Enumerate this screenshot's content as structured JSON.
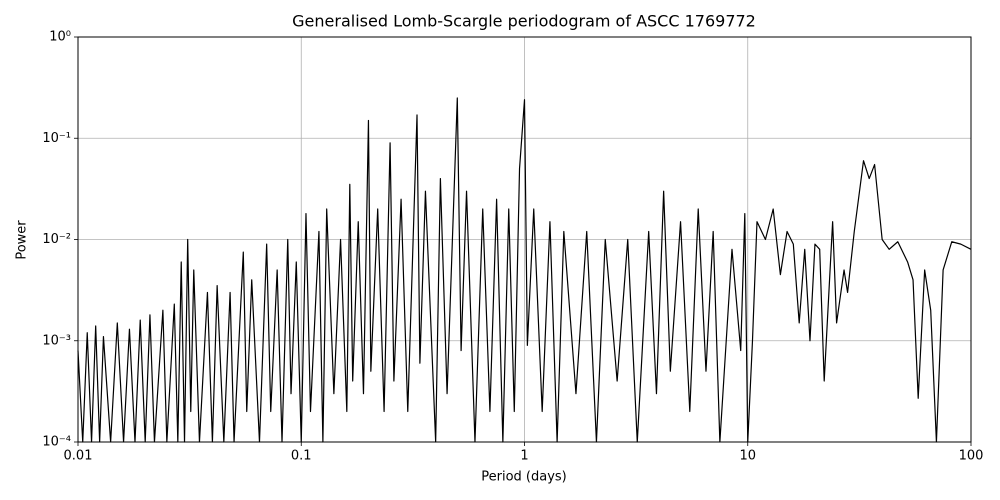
{
  "chart_data": {
    "type": "line",
    "title": "Generalised Lomb-Scargle periodogram of ASCC 1769772",
    "x_label": "Period (days)",
    "y_label": "Power",
    "x_scale": "log",
    "y_scale": "log",
    "grid": true,
    "color": "#000000",
    "xlim": [
      0.01,
      100
    ],
    "ylim": [
      0.0001,
      1
    ],
    "xticks": [
      0.01,
      0.1,
      1,
      10,
      100
    ],
    "yticks": [
      {
        "value": 0.0001,
        "label": "10⁻⁴"
      },
      {
        "value": 0.001,
        "label": "10⁻³"
      },
      {
        "value": 0.01,
        "label": "10⁻²"
      },
      {
        "value": 0.1,
        "label": "10⁻¹"
      },
      {
        "value": 1,
        "label": "10⁰"
      }
    ],
    "x": [
      0.01,
      0.0105,
      0.011,
      0.0115,
      0.012,
      0.0125,
      0.013,
      0.014,
      0.015,
      0.016,
      0.017,
      0.018,
      0.019,
      0.02,
      0.021,
      0.022,
      0.024,
      0.025,
      0.027,
      0.028,
      0.029,
      0.03,
      0.031,
      0.032,
      0.033,
      0.035,
      0.038,
      0.04,
      0.042,
      0.045,
      0.048,
      0.05,
      0.055,
      0.057,
      0.06,
      0.065,
      0.07,
      0.073,
      0.078,
      0.082,
      0.087,
      0.09,
      0.095,
      0.1,
      0.105,
      0.11,
      0.12,
      0.125,
      0.13,
      0.14,
      0.15,
      0.16,
      0.165,
      0.17,
      0.18,
      0.19,
      0.2,
      0.205,
      0.22,
      0.235,
      0.25,
      0.26,
      0.28,
      0.3,
      0.33,
      0.34,
      0.36,
      0.4,
      0.42,
      0.45,
      0.5,
      0.52,
      0.55,
      0.6,
      0.65,
      0.7,
      0.75,
      0.8,
      0.85,
      0.9,
      0.95,
      1.0,
      1.03,
      1.1,
      1.2,
      1.3,
      1.4,
      1.5,
      1.7,
      1.9,
      2.1,
      2.3,
      2.6,
      2.9,
      3.2,
      3.6,
      3.9,
      4.2,
      4.5,
      5,
      5.5,
      6,
      6.5,
      7,
      7.5,
      8.5,
      9.3,
      9.7,
      10,
      10.5,
      11,
      12,
      13,
      14,
      15,
      16,
      17,
      18,
      19,
      20,
      21,
      22,
      24,
      25,
      27,
      28,
      30,
      33,
      35,
      37,
      40,
      43,
      47,
      52,
      55,
      58,
      62,
      66,
      70,
      75,
      82,
      90,
      100
    ],
    "values": [
      0.0008,
      0.0001,
      0.0012,
      0.0001,
      0.0014,
      0.0001,
      0.0011,
      0.0001,
      0.0015,
      0.0001,
      0.0013,
      0.0001,
      0.0016,
      0.0001,
      0.0018,
      0.0001,
      0.002,
      0.0001,
      0.0023,
      0.0001,
      0.006,
      0.0001,
      0.01,
      0.0002,
      0.005,
      0.0001,
      0.003,
      0.0001,
      0.0035,
      0.0001,
      0.003,
      0.0001,
      0.0075,
      0.0002,
      0.004,
      0.0001,
      0.009,
      0.0002,
      0.005,
      0.0001,
      0.01,
      0.0003,
      0.006,
      0.0001,
      0.018,
      0.0002,
      0.012,
      0.0001,
      0.02,
      0.0003,
      0.01,
      0.0002,
      0.035,
      0.0004,
      0.015,
      0.0003,
      0.15,
      0.0005,
      0.02,
      0.0002,
      0.09,
      0.0004,
      0.025,
      0.0002,
      0.17,
      0.0006,
      0.03,
      0.0001,
      0.04,
      0.0003,
      0.25,
      0.0008,
      0.03,
      0.0001,
      0.02,
      0.0002,
      0.025,
      0.0001,
      0.02,
      0.0002,
      0.05,
      0.24,
      0.0009,
      0.02,
      0.0002,
      0.015,
      0.0001,
      0.012,
      0.0003,
      0.012,
      0.0001,
      0.01,
      0.0004,
      0.01,
      0.0001,
      0.012,
      0.0003,
      0.03,
      0.0005,
      0.015,
      0.0002,
      0.02,
      0.0005,
      0.012,
      0.0001,
      0.008,
      0.0008,
      0.018,
      0.0001,
      0.001,
      0.015,
      0.01,
      0.02,
      0.0045,
      0.012,
      0.009,
      0.0015,
      0.008,
      0.001,
      0.009,
      0.008,
      0.0004,
      0.015,
      0.0015,
      0.005,
      0.003,
      0.012,
      0.06,
      0.04,
      0.055,
      0.01,
      0.008,
      0.0095,
      0.006,
      0.004,
      0.00027,
      0.005,
      0.002,
      0.0001,
      0.005,
      0.0095,
      0.009,
      0.008
    ]
  }
}
